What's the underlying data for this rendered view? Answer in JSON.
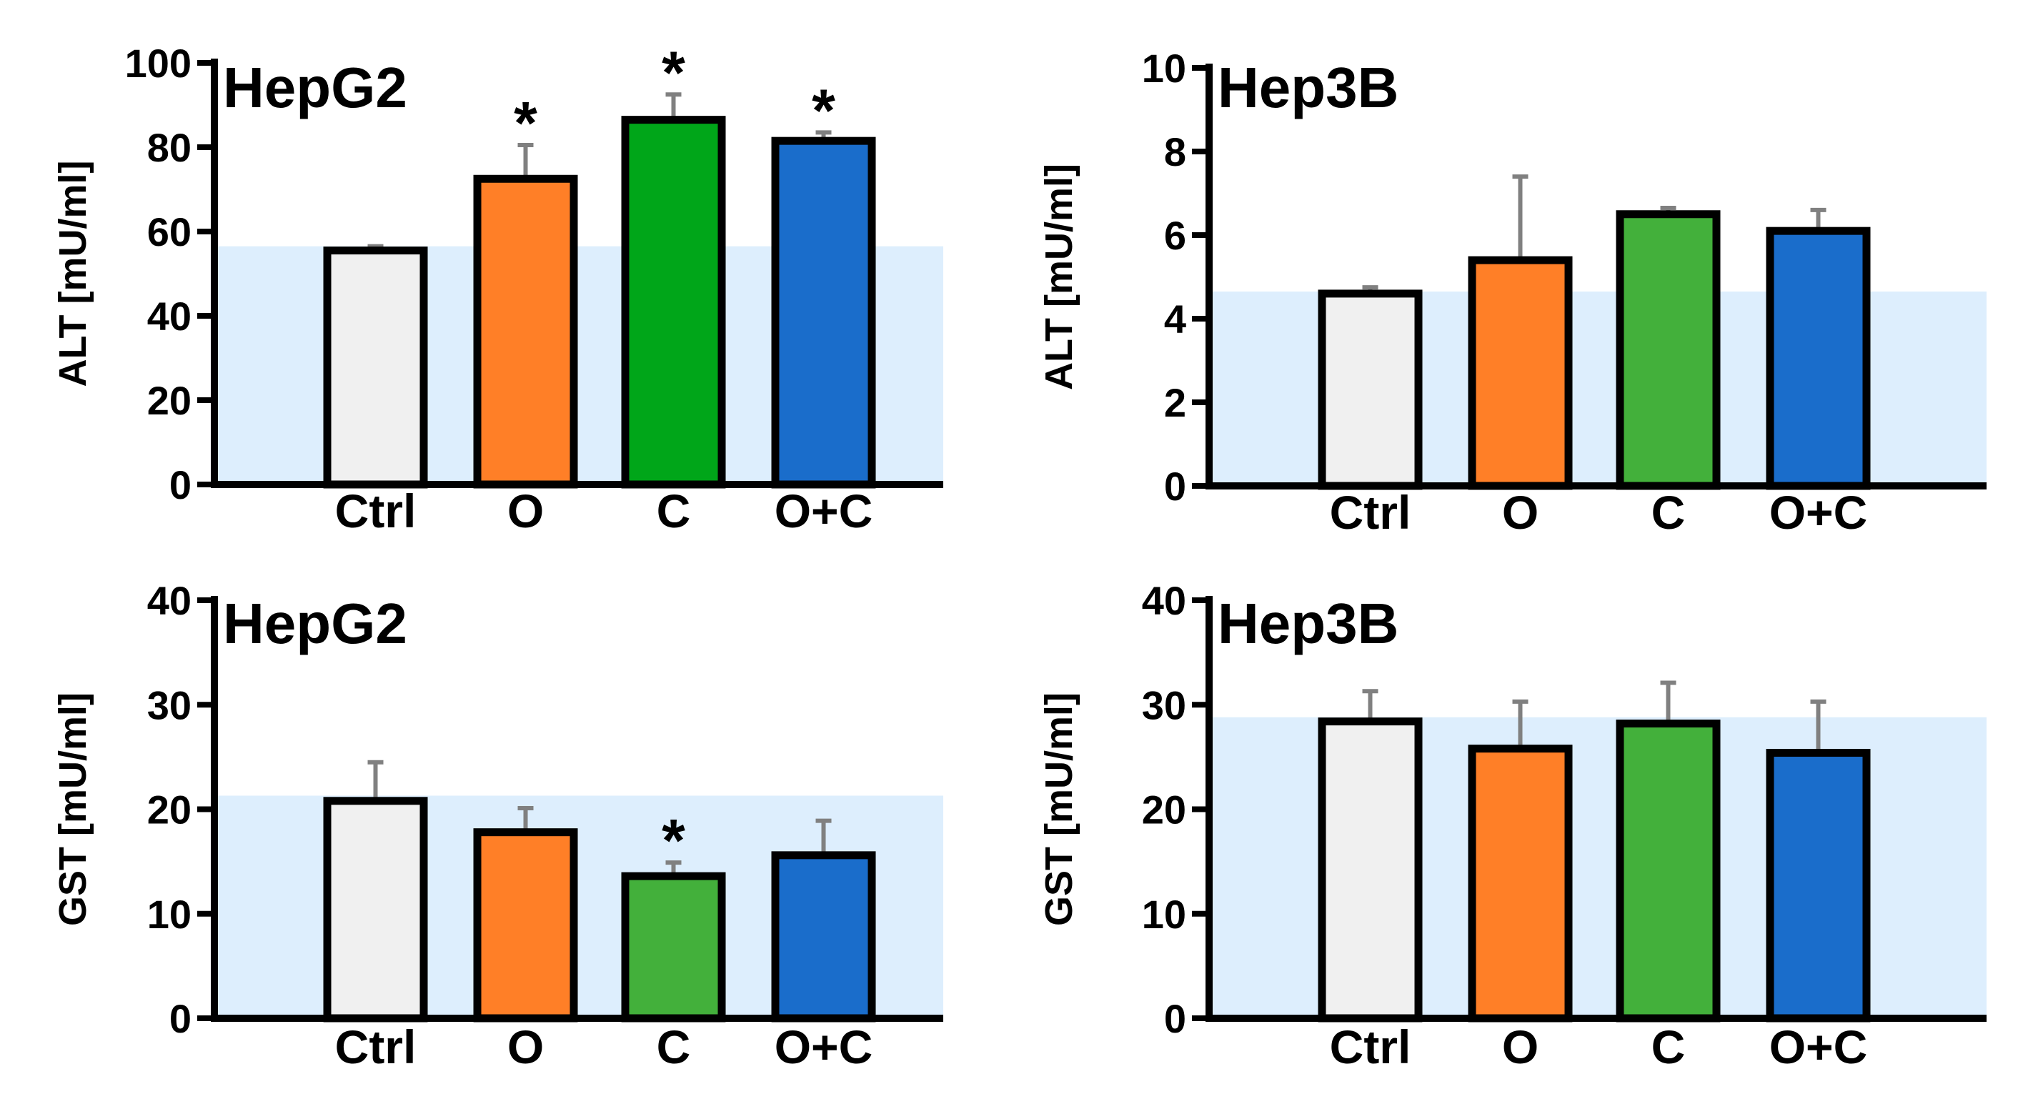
{
  "colors": {
    "ctrl": "#f0f0f0",
    "orange": "#ff7f27",
    "green_dark": "#00a619",
    "green": "#43b03b",
    "blue": "#1a6dcb",
    "band": "#ddeefd",
    "error": "#808080"
  },
  "chart_data": [
    {
      "type": "bar",
      "title": "HepG2",
      "ylabel": "ALT [mU/ml]",
      "xlabel": "",
      "categories": [
        "Ctrl",
        "O",
        "C",
        "O+C"
      ],
      "values": [
        55.5,
        72.5,
        86.5,
        81.5
      ],
      "errors": [
        1,
        8,
        6,
        2
      ],
      "significance": [
        "",
        "*",
        "*",
        "*"
      ],
      "ylim": [
        0,
        100
      ],
      "yticks": [
        0,
        20,
        40,
        60,
        80,
        100
      ],
      "band_level": 56.5,
      "bar_colors": [
        "#f0f0f0",
        "#ff7f27",
        "#00a619",
        "#1a6dcb"
      ]
    },
    {
      "type": "bar",
      "title": "Hep3B",
      "ylabel": "ALT [mU/ml]",
      "xlabel": "",
      "categories": [
        "Ctrl",
        "O",
        "C",
        "O+C"
      ],
      "values": [
        4.6,
        5.4,
        6.5,
        6.1
      ],
      "errors": [
        0.15,
        2.0,
        0.15,
        0.5
      ],
      "significance": [
        "",
        "",
        "",
        ""
      ],
      "ylim": [
        0,
        10
      ],
      "yticks": [
        0,
        2,
        4,
        6,
        8,
        10
      ],
      "band_level": 4.65,
      "bar_colors": [
        "#f0f0f0",
        "#ff7f27",
        "#43b03b",
        "#1a6dcb"
      ]
    },
    {
      "type": "bar",
      "title": "HepG2",
      "ylabel": "GST [mU/ml]",
      "xlabel": "",
      "categories": [
        "Ctrl",
        "O",
        "C",
        "O+C"
      ],
      "values": [
        20.8,
        17.8,
        13.6,
        15.6
      ],
      "errors": [
        3.7,
        2.3,
        1.3,
        3.3
      ],
      "significance": [
        "",
        "",
        "*",
        ""
      ],
      "ylim": [
        0,
        40
      ],
      "yticks": [
        0,
        10,
        20,
        30,
        40
      ],
      "band_level": 21.3,
      "bar_colors": [
        "#f0f0f0",
        "#ff7f27",
        "#43b03b",
        "#1a6dcb"
      ]
    },
    {
      "type": "bar",
      "title": "Hep3B",
      "ylabel": "GST [mU/ml]",
      "xlabel": "",
      "categories": [
        "Ctrl",
        "O",
        "C",
        "O+C"
      ],
      "values": [
        28.4,
        25.8,
        28.2,
        25.4
      ],
      "errors": [
        2.9,
        4.5,
        3.9,
        4.9
      ],
      "significance": [
        "",
        "",
        "",
        ""
      ],
      "ylim": [
        0,
        40
      ],
      "yticks": [
        0,
        10,
        20,
        30,
        40
      ],
      "band_level": 28.8,
      "bar_colors": [
        "#f0f0f0",
        "#ff7f27",
        "#43b03b",
        "#1a6dcb"
      ]
    }
  ]
}
